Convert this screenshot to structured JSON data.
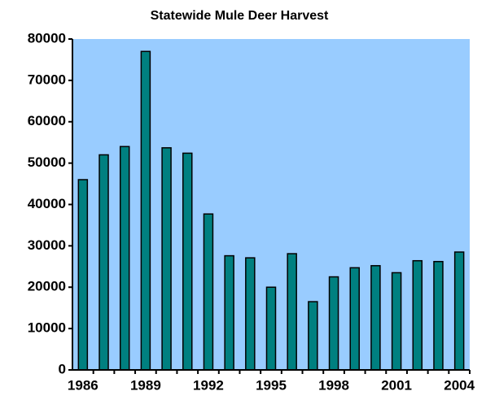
{
  "chart_data": {
    "type": "bar",
    "title": "Statewide Mule Deer Harvest",
    "categories": [
      "1986",
      null,
      null,
      "1989",
      null,
      null,
      "1992",
      null,
      null,
      "1995",
      null,
      null,
      "1998",
      null,
      null,
      "2001",
      null,
      null,
      "2004"
    ],
    "values": [
      46000,
      52000,
      54000,
      77000,
      53700,
      52400,
      37700,
      27600,
      27100,
      20000,
      28100,
      16500,
      22500,
      24700,
      25200,
      23500,
      26400,
      26200,
      28500
    ],
    "color": "#008080",
    "background": "#99ccff",
    "ylim": [
      0,
      80000
    ],
    "yticks": [
      0,
      10000,
      20000,
      30000,
      40000,
      50000,
      60000,
      70000,
      80000
    ],
    "grid": false
  }
}
